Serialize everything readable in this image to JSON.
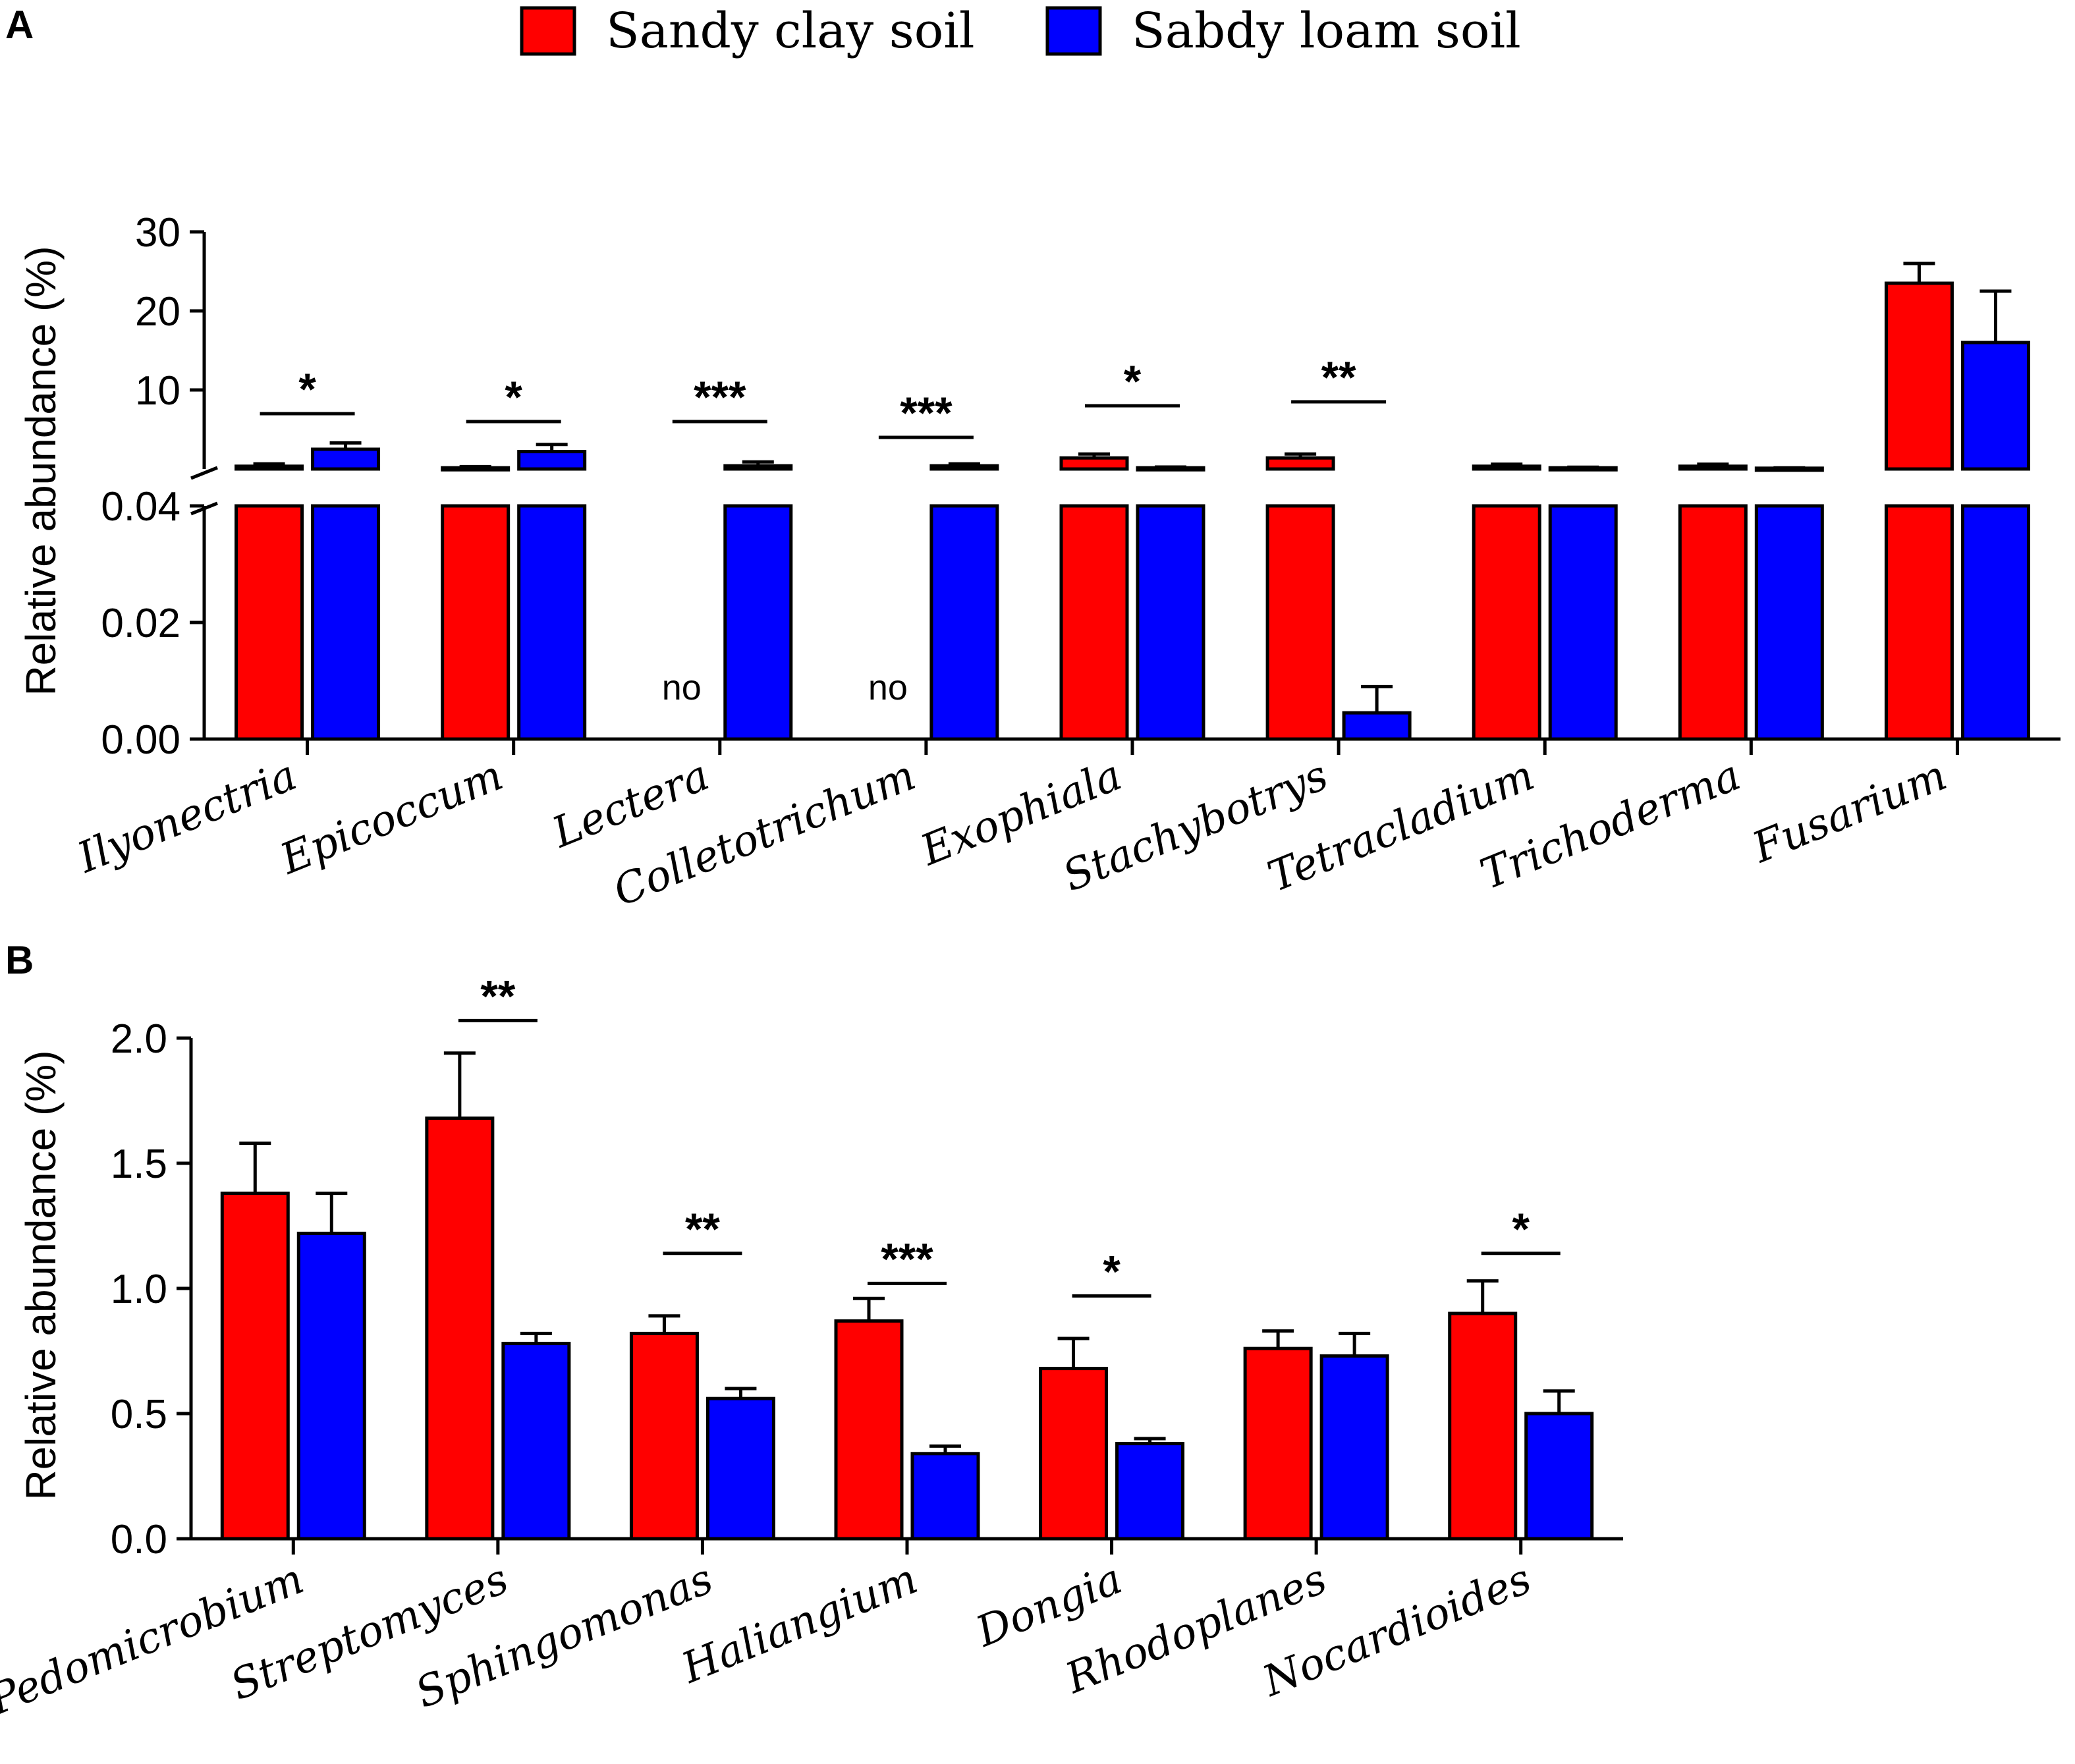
{
  "colors": {
    "sandy_clay": "#ff0000",
    "sandy_loam": "#0000ff",
    "axis": "#000000"
  },
  "legend": [
    {
      "label": "Sandy clay soil",
      "color": "#ff0000"
    },
    {
      "label": "Sabdy loam soil",
      "color": "#0000ff"
    }
  ],
  "chart_data": [
    {
      "panel": "A",
      "type": "bar",
      "ylabel": "Relative abundance (%)",
      "axis_break": true,
      "ylim_lower": [
        0,
        0.04
      ],
      "yticks_lower": [
        "0.00",
        "0.02",
        "0.04"
      ],
      "ylim_upper": [
        0,
        30
      ],
      "yticks_upper": [
        "10",
        "20",
        "30"
      ],
      "categories": [
        "Ilyonectria",
        "Epicoccum",
        "Lectera",
        "Colletotrichum",
        "Exophiala",
        "Stachybotrys",
        "Tetracladium",
        "Trichoderma",
        "Fusarium"
      ],
      "series": [
        {
          "name": "Sandy clay soil",
          "values": [
            0.35,
            0.15,
            0,
            0,
            1.4,
            1.4,
            0.35,
            0.35,
            23.5
          ],
          "errors": [
            0.3,
            0.15,
            0,
            0,
            0.5,
            0.5,
            0.25,
            0.25,
            2.5
          ]
        },
        {
          "name": "Sabdy loam soil",
          "values": [
            2.5,
            2.2,
            0.4,
            0.4,
            0.15,
            0.0045,
            0.15,
            0.1,
            16
          ],
          "errors": [
            0.8,
            0.9,
            0.5,
            0.25,
            0.1,
            0.0045,
            0.08,
            0.05,
            6.5
          ]
        }
      ],
      "annotations": [
        {
          "category": "Lectera",
          "text": "no"
        },
        {
          "category": "Colletotrichum",
          "text": "no"
        }
      ],
      "significance": [
        {
          "category": "Ilyonectria",
          "text": "*",
          "y": 7
        },
        {
          "category": "Epicoccum",
          "text": "*",
          "y": 6
        },
        {
          "category": "Lectera",
          "text": "***",
          "y": 6
        },
        {
          "category": "Colletotrichum",
          "text": "***",
          "y": 4
        },
        {
          "category": "Exophiala",
          "text": "*",
          "y": 8
        },
        {
          "category": "Stachybotrys",
          "text": "**",
          "y": 8.5
        }
      ]
    },
    {
      "panel": "B",
      "type": "bar",
      "ylabel": "Relative abundance (%)",
      "ylim": [
        0,
        2.0
      ],
      "yticks": [
        "0.0",
        "0.5",
        "1.0",
        "1.5",
        "2.0"
      ],
      "categories": [
        "Pedomicrobium",
        "Streptomyces",
        "Sphingomonas",
        "Haliangium",
        "Dongia",
        "Rhodoplanes",
        "Nocardioides"
      ],
      "series": [
        {
          "name": "Sandy clay soil",
          "values": [
            1.38,
            1.68,
            0.82,
            0.87,
            0.68,
            0.76,
            0.9
          ],
          "errors": [
            0.2,
            0.26,
            0.07,
            0.09,
            0.12,
            0.07,
            0.13
          ]
        },
        {
          "name": "Sabdy loam soil",
          "values": [
            1.22,
            0.78,
            0.56,
            0.34,
            0.38,
            0.73,
            0.5
          ],
          "errors": [
            0.16,
            0.04,
            0.04,
            0.03,
            0.02,
            0.09,
            0.09
          ]
        }
      ],
      "significance": [
        {
          "category": "Streptomyces",
          "text": "**",
          "y": 2.07
        },
        {
          "category": "Sphingomonas",
          "text": "**",
          "y": 1.14
        },
        {
          "category": "Haliangium",
          "text": "***",
          "y": 1.02
        },
        {
          "category": "Dongia",
          "text": "*",
          "y": 0.97
        },
        {
          "category": "Nocardioides",
          "text": "*",
          "y": 1.14
        }
      ]
    }
  ]
}
